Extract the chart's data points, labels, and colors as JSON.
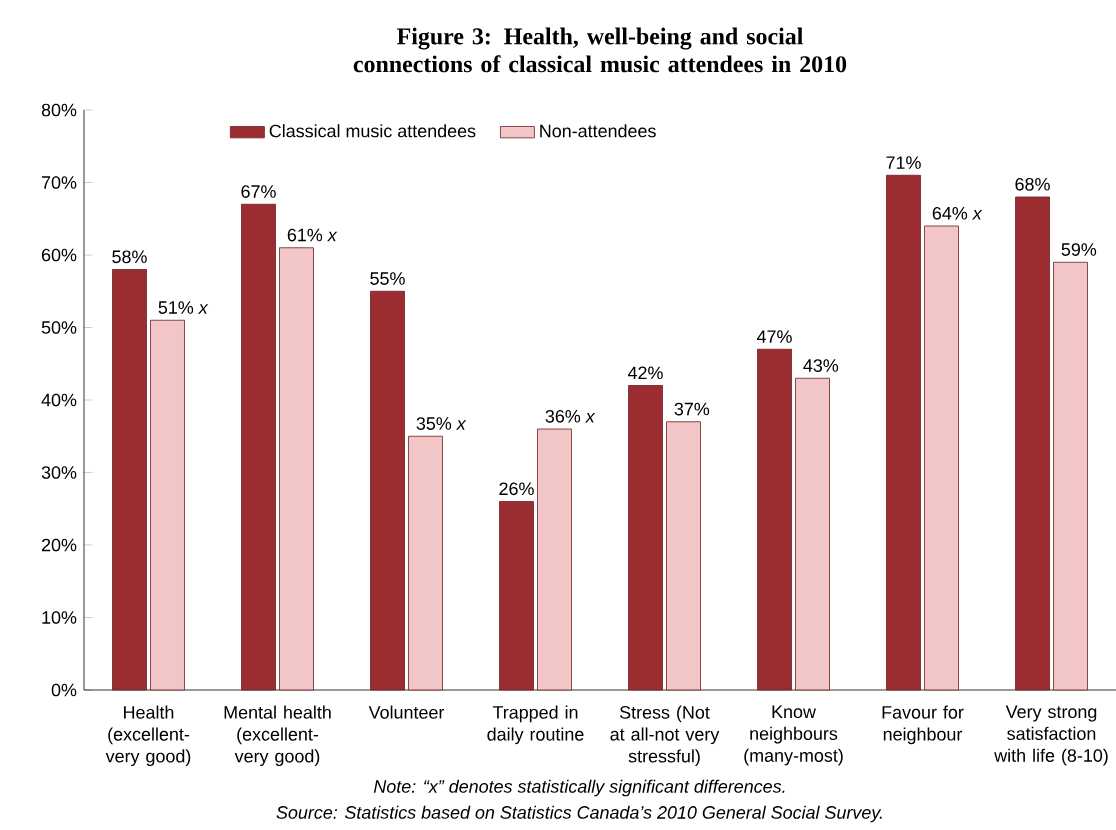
{
  "chart_data": {
    "type": "bar",
    "title": "Figure 3: Health, well-being and social connections of classical music attendees in 2010",
    "categories": [
      "Health (excellent-very good)",
      "Mental health (excellent-very good)",
      "Volunteer",
      "Trapped in daily routine",
      "Stress (Not at all-not very stressful)",
      "Know neighbours (many-most)",
      "Favour for neighbour",
      "Very strong satisfaction with life (8-10)"
    ],
    "series": [
      {
        "name": "Classical music attendees",
        "color": "#9b2d30",
        "values": [
          58,
          67,
          55,
          26,
          42,
          47,
          71,
          68
        ],
        "value_labels": [
          "58%",
          "67%",
          "55%",
          "26%",
          "42%",
          "47%",
          "71%",
          "68%"
        ]
      },
      {
        "name": "Non-attendees",
        "color": "#f2c6c6",
        "values": [
          51,
          61,
          35,
          36,
          37,
          43,
          64,
          59
        ],
        "value_labels": [
          "51% *x*",
          "61% *x*",
          "35% *x*",
          "36% *x*",
          "37%",
          "43%",
          "64% *x*",
          "59%"
        ]
      }
    ],
    "ylim": [
      0,
      80
    ],
    "yticks": [
      {
        "value": 0,
        "label": "0%"
      },
      {
        "value": 10,
        "label": "10%"
      },
      {
        "value": 20,
        "label": "20%"
      },
      {
        "value": 30,
        "label": "30%"
      },
      {
        "value": 40,
        "label": "40%"
      },
      {
        "value": 50,
        "label": "50%"
      },
      {
        "value": 60,
        "label": "60%"
      },
      {
        "value": 70,
        "label": "70%"
      },
      {
        "value": 80,
        "label": "80%"
      }
    ],
    "legend": "top",
    "annotations": [
      "Note: “x” denotes statistically significant differences.",
      "Source: Statistics based on Statistics Canada’s 2010 General Social Survey."
    ]
  }
}
